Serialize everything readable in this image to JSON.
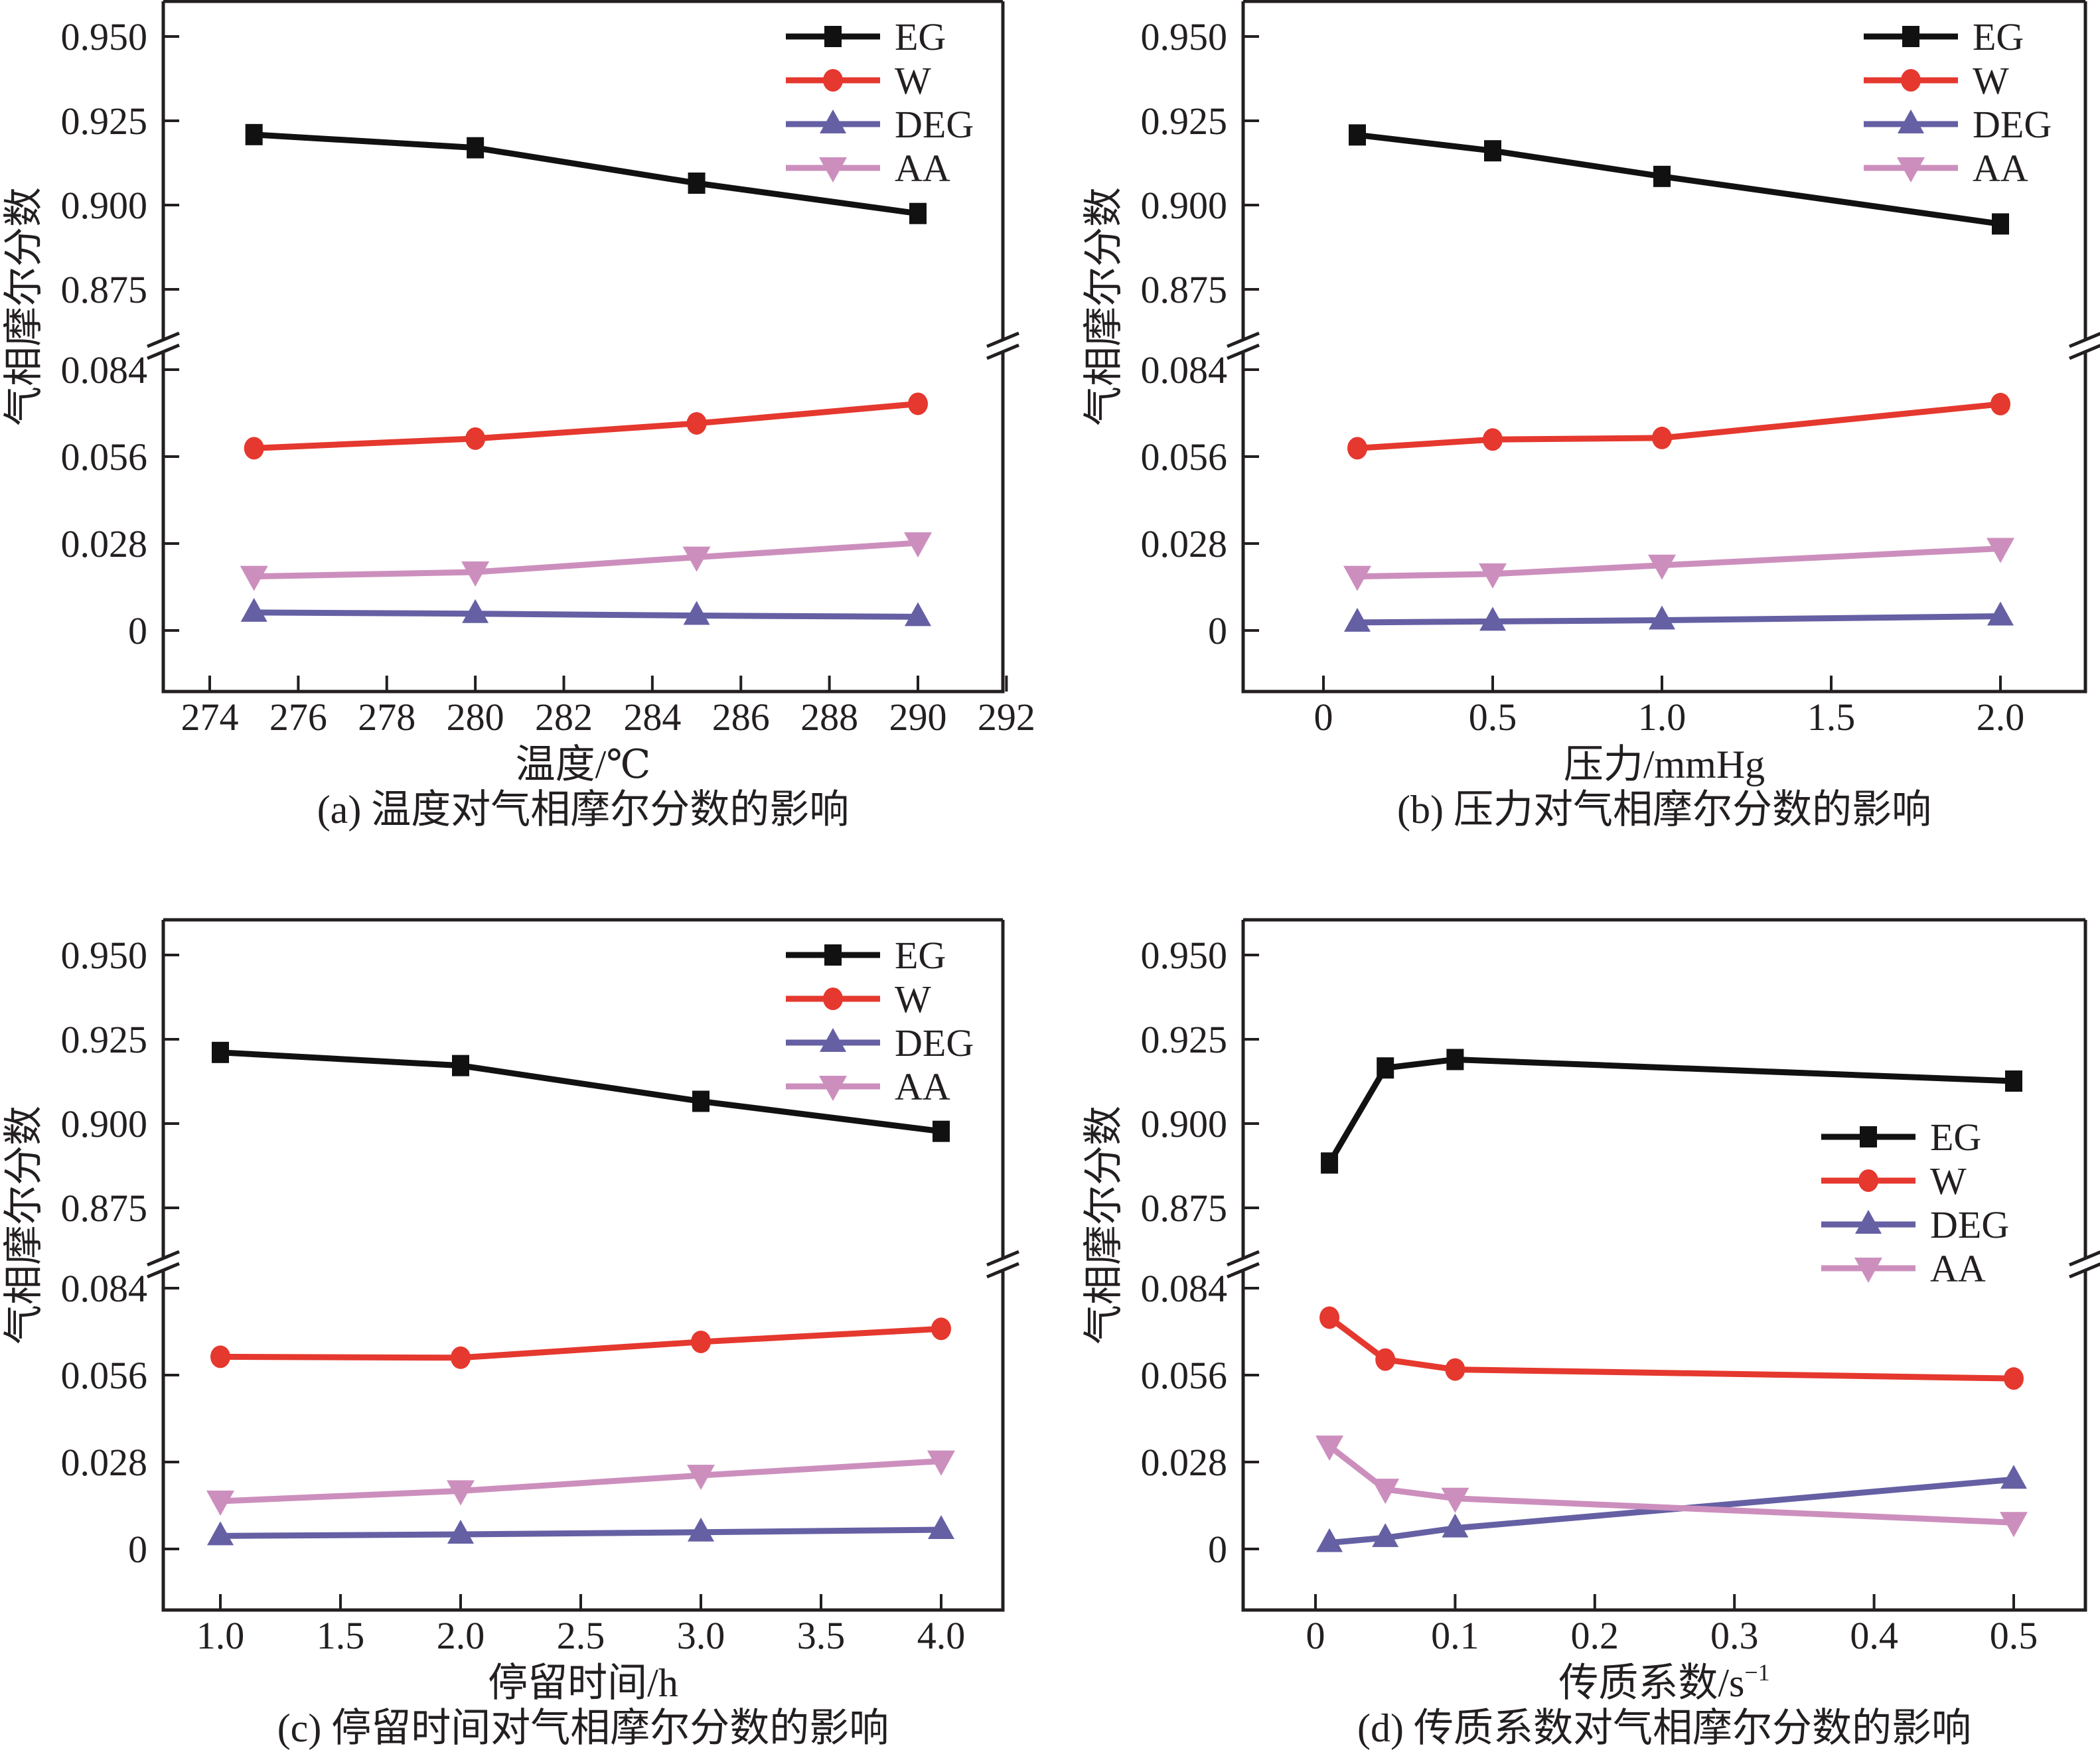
{
  "figure": {
    "ylabel": "气相摩尔分数",
    "break_marker": "axis-break"
  },
  "colors": {
    "EG": "#111111",
    "W": "#e5382e",
    "DEG": "#6560a3",
    "AA": "#cc8fbd"
  },
  "chart_data": [
    {
      "id": "a",
      "type": "line",
      "caption": "(a) 温度对气相摩尔分数的影响",
      "title": "",
      "xlabel": "温度/℃",
      "ylabel": "气相摩尔分数",
      "xlim": [
        273,
        292
      ],
      "xticks": [
        274,
        276,
        278,
        280,
        282,
        284,
        286,
        288,
        290,
        292
      ],
      "xtick_labels": [
        "274",
        "276",
        "278",
        "280",
        "282",
        "284",
        "286",
        "288",
        "290",
        "292"
      ],
      "y_broken": true,
      "ylim_upper": [
        0.86,
        0.96
      ],
      "ylim_lower": [
        -0.017,
        0.092
      ],
      "yticks_upper": [
        0.95,
        0.925,
        0.9,
        0.875
      ],
      "ytick_labels_upper": [
        "0.950",
        "0.925",
        "0.900",
        "0.875"
      ],
      "yticks_lower": [
        0.084,
        0.056,
        0.028,
        0
      ],
      "ytick_labels_lower": [
        "0.084",
        "0.056",
        "0.028",
        "0"
      ],
      "legend": {
        "entries": [
          "EG",
          "W",
          "DEG",
          "AA"
        ],
        "placement": "top-right"
      },
      "grid": false,
      "x": [
        275,
        280,
        285,
        290
      ],
      "series": [
        {
          "name": "EG",
          "marker": "square",
          "axis": "upper",
          "values": [
            0.9209,
            0.917,
            0.9065,
            0.8975
          ]
        },
        {
          "name": "W",
          "marker": "circle",
          "axis": "lower",
          "values": [
            0.0587,
            0.0618,
            0.0667,
            0.073
          ]
        },
        {
          "name": "DEG",
          "marker": "triangle-up",
          "axis": "lower",
          "values": [
            0.0058,
            0.0054,
            0.0048,
            0.0044
          ]
        },
        {
          "name": "AA",
          "marker": "triangle-down",
          "axis": "lower",
          "values": [
            0.0174,
            0.0188,
            0.0236,
            0.0282
          ]
        }
      ]
    },
    {
      "id": "b",
      "type": "line",
      "caption": "(b) 压力对气相摩尔分数的影响",
      "title": "",
      "xlabel": "压力/mmHg",
      "ylabel": "气相摩尔分数",
      "xlim": [
        -0.24,
        2.25
      ],
      "xticks": [
        0,
        0.5,
        1.0,
        1.5,
        2.0
      ],
      "xtick_labels": [
        "0",
        "0.5",
        "1.0",
        "1.5",
        "2.0"
      ],
      "y_broken": true,
      "ylim_upper": [
        0.86,
        0.96
      ],
      "ylim_lower": [
        -0.017,
        0.092
      ],
      "yticks_upper": [
        0.95,
        0.925,
        0.9,
        0.875
      ],
      "ytick_labels_upper": [
        "0.950",
        "0.925",
        "0.900",
        "0.875"
      ],
      "yticks_lower": [
        0.084,
        0.056,
        0.028,
        0
      ],
      "ytick_labels_lower": [
        "0.084",
        "0.056",
        "0.028",
        "0"
      ],
      "legend": {
        "entries": [
          "EG",
          "W",
          "DEG",
          "AA"
        ],
        "placement": "top-right"
      },
      "grid": false,
      "x": [
        0.1,
        0.5,
        1.0,
        2.0
      ],
      "series": [
        {
          "name": "EG",
          "marker": "square",
          "axis": "upper",
          "values": [
            0.9208,
            0.9161,
            0.9085,
            0.8944
          ]
        },
        {
          "name": "W",
          "marker": "circle",
          "axis": "lower",
          "values": [
            0.0587,
            0.0615,
            0.062,
            0.0729
          ]
        },
        {
          "name": "DEG",
          "marker": "triangle-up",
          "axis": "lower",
          "values": [
            0.0026,
            0.0029,
            0.0033,
            0.0046
          ]
        },
        {
          "name": "AA",
          "marker": "triangle-down",
          "axis": "lower",
          "values": [
            0.0174,
            0.0182,
            0.021,
            0.0264
          ]
        }
      ]
    },
    {
      "id": "c",
      "type": "line",
      "caption": "(c) 停留时间对气相摩尔分数的影响",
      "title": "",
      "xlabel": "停留时间/h",
      "ylabel": "气相摩尔分数",
      "xlim": [
        0.76,
        4.25
      ],
      "xticks": [
        1.0,
        1.5,
        2.0,
        2.5,
        3.0,
        3.5,
        4.0
      ],
      "xtick_labels": [
        "1.0",
        "1.5",
        "2.0",
        "2.5",
        "3.0",
        "3.5",
        "4.0"
      ],
      "y_broken": true,
      "ylim_upper": [
        0.86,
        0.96
      ],
      "ylim_lower": [
        -0.017,
        0.092
      ],
      "yticks_upper": [
        0.95,
        0.925,
        0.9,
        0.875
      ],
      "ytick_labels_upper": [
        "0.950",
        "0.925",
        "0.900",
        "0.875"
      ],
      "yticks_lower": [
        0.084,
        0.056,
        0.028,
        0
      ],
      "ytick_labels_lower": [
        "0.084",
        "0.056",
        "0.028",
        "0"
      ],
      "legend": {
        "entries": [
          "EG",
          "W",
          "DEG",
          "AA"
        ],
        "placement": "top-right"
      },
      "grid": false,
      "x": [
        1.0,
        2.0,
        3.0,
        4.0
      ],
      "series": [
        {
          "name": "EG",
          "marker": "square",
          "axis": "upper",
          "values": [
            0.9211,
            0.9172,
            0.9066,
            0.8977
          ]
        },
        {
          "name": "W",
          "marker": "circle",
          "axis": "lower",
          "values": [
            0.0619,
            0.0616,
            0.0667,
            0.0709
          ]
        },
        {
          "name": "DEG",
          "marker": "triangle-up",
          "axis": "lower",
          "values": [
            0.0042,
            0.0047,
            0.0054,
            0.0062
          ]
        },
        {
          "name": "AA",
          "marker": "triangle-down",
          "axis": "lower",
          "values": [
            0.0154,
            0.0187,
            0.0237,
            0.0283
          ]
        }
      ]
    },
    {
      "id": "d",
      "type": "line",
      "caption": "(d) 传质系数对气相摩尔分数的影响",
      "title": "",
      "xlabel": "传质系数/s",
      "xlabel_superscript": "−1",
      "ylabel": "气相摩尔分数",
      "xlim": [
        -0.052,
        0.55
      ],
      "xticks": [
        0,
        0.1,
        0.2,
        0.3,
        0.4,
        0.5
      ],
      "xtick_labels": [
        "0",
        "0.1",
        "0.2",
        "0.3",
        "0.4",
        "0.5"
      ],
      "y_broken": true,
      "ylim_upper": [
        0.86,
        0.96
      ],
      "ylim_lower": [
        -0.017,
        0.092
      ],
      "yticks_upper": [
        0.95,
        0.925,
        0.9,
        0.875
      ],
      "ytick_labels_upper": [
        "0.950",
        "0.925",
        "0.900",
        "0.875"
      ],
      "yticks_lower": [
        0.084,
        0.056,
        0.028,
        0
      ],
      "ytick_labels_lower": [
        "0.084",
        "0.056",
        "0.028",
        "0"
      ],
      "legend": {
        "entries": [
          "EG",
          "W",
          "DEG",
          "AA"
        ],
        "placement": "center-right"
      },
      "grid": false,
      "x": [
        0.01,
        0.05,
        0.1,
        0.5
      ],
      "series": [
        {
          "name": "EG",
          "marker": "square",
          "axis": "upper",
          "values": [
            0.8883,
            0.9165,
            0.919,
            0.9126
          ]
        },
        {
          "name": "W",
          "marker": "circle",
          "axis": "lower",
          "values": [
            0.0745,
            0.061,
            0.0578,
            0.0549
          ]
        },
        {
          "name": "DEG",
          "marker": "triangle-up",
          "axis": "lower",
          "values": [
            0.002,
            0.0036,
            0.0067,
            0.0224
          ]
        },
        {
          "name": "AA",
          "marker": "triangle-down",
          "axis": "lower",
          "values": [
            0.0331,
            0.0192,
            0.0163,
            0.0085
          ]
        }
      ]
    }
  ]
}
